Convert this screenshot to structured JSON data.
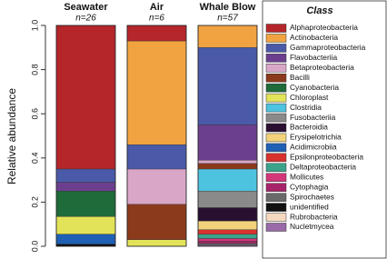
{
  "chart_data": {
    "type": "stacked_bar",
    "categories": [
      "Seawater",
      "Air",
      "Whale Blow"
    ],
    "category_subtitles": [
      "n=26",
      "n=6",
      "n=57"
    ],
    "ylabel": "Relative abundance",
    "legend_title": "Class",
    "ylim": [
      0,
      1
    ],
    "yticks": [
      {
        "value": 0,
        "label": "0.0"
      },
      0.2,
      0.4,
      0.6,
      0.8,
      {
        "value": 1,
        "label": "1.0"
      }
    ],
    "series": [
      {
        "name": "Alphaproteobacteria",
        "color": "#b5262b",
        "values": [
          0.65,
          0.07,
          0
        ]
      },
      {
        "name": "Actinobacteria",
        "color": "#f0a340",
        "values": [
          0,
          0.47,
          0.1
        ]
      },
      {
        "name": "Gammaproteobacteria",
        "color": "#4a5aa8",
        "values": [
          0.06,
          0.11,
          0.35
        ]
      },
      {
        "name": "Flavobacteriia",
        "color": "#6b3f8e",
        "values": [
          0.04,
          0,
          0.16
        ]
      },
      {
        "name": "Betaproteobacteria",
        "color": "#d9a6c8",
        "values": [
          0,
          0.16,
          0.015
        ]
      },
      {
        "name": "Bacilli",
        "color": "#8c3a1c",
        "values": [
          0,
          0.16,
          0.025
        ]
      },
      {
        "name": "Cyanobacteria",
        "color": "#1f6b3a",
        "values": [
          0.115,
          0,
          0
        ]
      },
      {
        "name": "Chloroplast",
        "color": "#e3e35a",
        "values": [
          0.08,
          0.03,
          0
        ]
      },
      {
        "name": "Clostridia",
        "color": "#4ec3e0",
        "values": [
          0,
          0,
          0.1
        ]
      },
      {
        "name": "Fusobacteriia",
        "color": "#8a8a8a",
        "values": [
          0,
          0,
          0.075
        ]
      },
      {
        "name": "Bacteroidia",
        "color": "#2a1030",
        "values": [
          0,
          0,
          0.06
        ]
      },
      {
        "name": "Erysipelotrichia",
        "color": "#f2d27a",
        "values": [
          0,
          0,
          0.04
        ]
      },
      {
        "name": "Acidimicrobiia",
        "color": "#1f5fb4",
        "values": [
          0.045,
          0,
          0
        ]
      },
      {
        "name": "Epsilonproteobacteria",
        "color": "#d8322e",
        "values": [
          0,
          0,
          0.02
        ]
      },
      {
        "name": "Deltaproteobacteria",
        "color": "#3aa38a",
        "values": [
          0,
          0,
          0.02
        ]
      },
      {
        "name": "Mollicutes",
        "color": "#d4367a",
        "values": [
          0,
          0,
          0.012
        ]
      },
      {
        "name": "Cytophagia",
        "color": "#a8246a",
        "values": [
          0,
          0,
          0.01
        ]
      },
      {
        "name": "Spirochaetes",
        "color": "#6a6a6a",
        "values": [
          0,
          0,
          0.008
        ]
      },
      {
        "name": "unidentified",
        "color": "#111111",
        "values": [
          0.01,
          0,
          0
        ]
      },
      {
        "name": "Rubrobacteria",
        "color": "#f5d8c0",
        "values": [
          0,
          0,
          0
        ]
      },
      {
        "name": "Nucletmycea",
        "color": "#9a6aa8",
        "values": [
          0,
          0,
          0.005
        ]
      }
    ]
  }
}
